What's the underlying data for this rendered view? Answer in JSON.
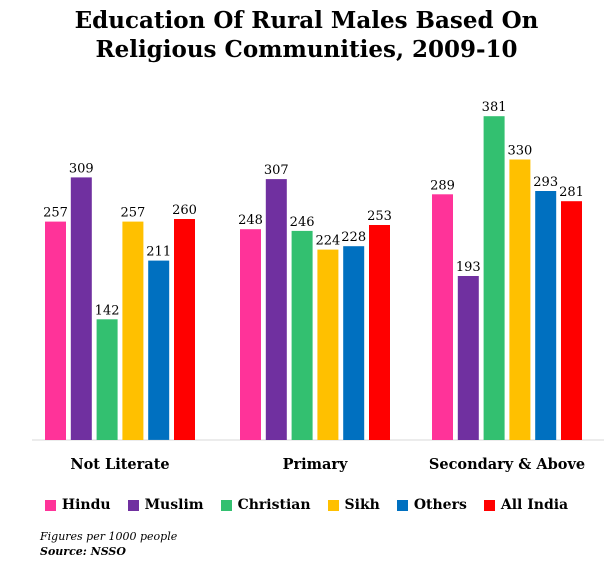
{
  "chart_data": {
    "type": "bar",
    "title": "Education Of Rural Males Based On Religious Communities, 2009-10",
    "categories": [
      "Not Literate",
      "Primary",
      "Secondary & Above"
    ],
    "series": [
      {
        "name": "Hindu",
        "color": "#ff3399",
        "values": [
          257,
          248,
          289
        ]
      },
      {
        "name": "Muslim",
        "color": "#7030a0",
        "values": [
          309,
          307,
          193
        ]
      },
      {
        "name": "Christian",
        "color": "#33c070",
        "values": [
          142,
          246,
          381
        ]
      },
      {
        "name": "Sikh",
        "color": "#ffc000",
        "values": [
          257,
          224,
          330
        ]
      },
      {
        "name": "Others",
        "color": "#0070c0",
        "values": [
          211,
          228,
          293
        ]
      },
      {
        "name": "All India",
        "color": "#ff0000",
        "values": [
          260,
          253,
          281
        ]
      }
    ],
    "ylim": [
      0,
      400
    ],
    "grid": false,
    "legend": "bottom",
    "note": "Figures per 1000 people",
    "source": "Source: NSSO"
  }
}
